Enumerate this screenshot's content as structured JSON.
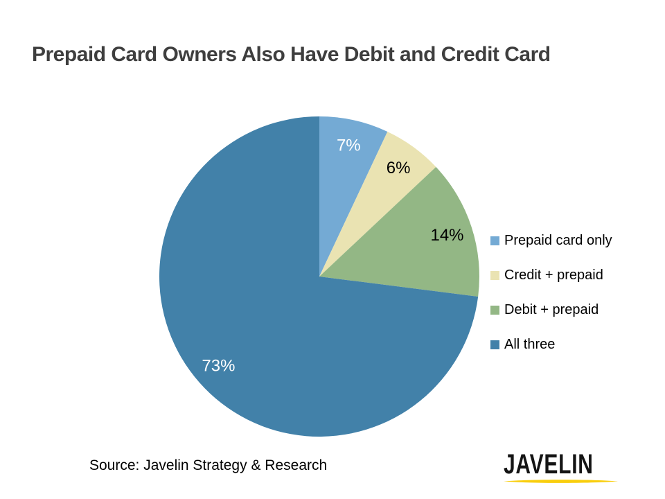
{
  "page": {
    "title": "Prepaid Card Owners Also Have Debit and Credit Card",
    "title_color": "#3E3E3E",
    "source": "Source: Javelin Strategy & Research",
    "logo_text": "JAVELIN",
    "logo_underline_color": "#F9CE0D"
  },
  "chart_data": {
    "type": "pie",
    "title": "Prepaid Card Owners Also Have Debit and Credit Card",
    "start_angle_deg": 0,
    "direction": "clockwise",
    "legend_position": "right",
    "data_labels": "percent",
    "slices": [
      {
        "label": "Prepaid card only",
        "value": 7,
        "display": "7%",
        "color": "#74AAD4",
        "label_color": "#FFFFFF"
      },
      {
        "label": "Credit + prepaid",
        "value": 6,
        "display": "6%",
        "color": "#EAE3B2",
        "label_color": "#000000"
      },
      {
        "label": "Debit + prepaid",
        "value": 14,
        "display": "14%",
        "color": "#93B785",
        "label_color": "#000000"
      },
      {
        "label": "All three",
        "value": 73,
        "display": "73%",
        "color": "#4281A9",
        "label_color": "#FFFFFF"
      }
    ]
  }
}
